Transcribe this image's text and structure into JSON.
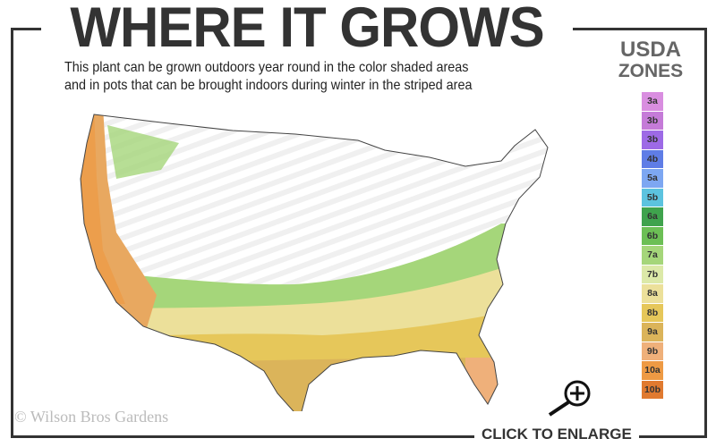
{
  "header": {
    "title": "WHERE IT GROWS",
    "subtitle_line1": "This plant can be grown outdoors year round in the color shaded areas",
    "subtitle_line2": "and in pots that can be brought indoors during winter in the striped area"
  },
  "legend": {
    "title_line1": "USDA",
    "title_line2": "ZONES",
    "zones": [
      {
        "label": "3a",
        "color": "#d98ee0"
      },
      {
        "label": "3b",
        "color": "#c57bd8"
      },
      {
        "label": "3b",
        "color": "#9d6ae6"
      },
      {
        "label": "4b",
        "color": "#5f7de6"
      },
      {
        "label": "5a",
        "color": "#7da7f2"
      },
      {
        "label": "5b",
        "color": "#5cc3df"
      },
      {
        "label": "6a",
        "color": "#3fa34d"
      },
      {
        "label": "6b",
        "color": "#6cbf55"
      },
      {
        "label": "7a",
        "color": "#a5d67a"
      },
      {
        "label": "7b",
        "color": "#dce9a8"
      },
      {
        "label": "8a",
        "color": "#ece09a"
      },
      {
        "label": "8b",
        "color": "#e6c75a"
      },
      {
        "label": "9a",
        "color": "#dbb45a"
      },
      {
        "label": "9b",
        "color": "#efb07a"
      },
      {
        "label": "10a",
        "color": "#ee9a44"
      },
      {
        "label": "10b",
        "color": "#e07a30"
      }
    ]
  },
  "footer": {
    "copyright": "© Wilson Bros Gardens",
    "enlarge_label": "CLICK TO ENLARGE",
    "enlarge_icon": "magnifier-plus-icon"
  }
}
